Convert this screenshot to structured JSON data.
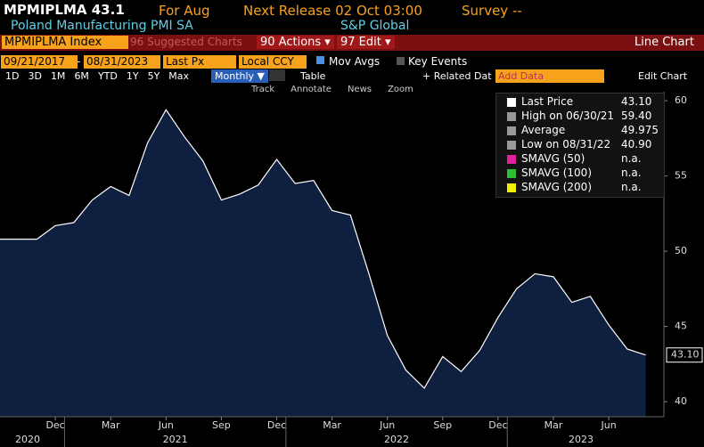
{
  "header": {
    "ticker": "MPMIPLMA",
    "last": "43.1",
    "for": "For Aug",
    "next_release": "Next Release 02 Oct 03:00",
    "survey": "Survey --",
    "name": "Poland Manufacturing PMI SA",
    "source": "S&P Global"
  },
  "toolbar": {
    "security": "MPMIPLMA Index",
    "suggested": "96 Suggested Charts",
    "actions": "90 Actions ▾",
    "edit": "97 Edit ▾",
    "chart_type": "Line Chart",
    "start": "09/21/2017",
    "sep": "-",
    "end": "08/31/2023",
    "field": "Last Px",
    "currency": "Local CCY",
    "mov_avgs": "Mov Avgs",
    "key_events": "Key Events",
    "ranges": [
      "1D",
      "3D",
      "1M",
      "6M",
      "YTD",
      "1Y",
      "5Y",
      "Max"
    ],
    "frequency": "Monthly ▼",
    "table": "Table",
    "related": "+ Related Dat",
    "add_data": "Add Data",
    "edit_chart": "Edit Chart",
    "tools": [
      "Track",
      "Annotate",
      "News",
      "Zoom"
    ]
  },
  "legend": [
    {
      "label": "Last Price",
      "value": "43.10",
      "color": "#ffffff"
    },
    {
      "label": "High on 06/30/21",
      "value": "59.40",
      "color": "#9a9a9a"
    },
    {
      "label": "Average",
      "value": "49.975",
      "color": "#9a9a9a"
    },
    {
      "label": "Low on 08/31/22",
      "value": "40.90",
      "color": "#9a9a9a"
    },
    {
      "label": "SMAVG (50)",
      "value": "n.a.",
      "color": "#e0209c"
    },
    {
      "label": "SMAVG (100)",
      "value": "n.a.",
      "color": "#2ec030"
    },
    {
      "label": "SMAVG (200)",
      "value": "n.a.",
      "color": "#f0f000"
    }
  ],
  "chart_data": {
    "type": "line",
    "x": [
      "2020-09",
      "2020-10",
      "2020-11",
      "2020-12",
      "2021-01",
      "2021-02",
      "2021-03",
      "2021-04",
      "2021-05",
      "2021-06",
      "2021-07",
      "2021-08",
      "2021-09",
      "2021-10",
      "2021-11",
      "2021-12",
      "2022-01",
      "2022-02",
      "2022-03",
      "2022-04",
      "2022-05",
      "2022-06",
      "2022-07",
      "2022-08",
      "2022-09",
      "2022-10",
      "2022-11",
      "2022-12",
      "2023-01",
      "2023-02",
      "2023-03",
      "2023-04",
      "2023-05",
      "2023-06",
      "2023-07",
      "2023-08"
    ],
    "values": [
      50.8,
      50.8,
      50.8,
      51.7,
      51.9,
      53.4,
      54.3,
      53.7,
      57.2,
      59.4,
      57.6,
      56.0,
      53.4,
      53.8,
      54.4,
      56.1,
      54.5,
      54.7,
      52.7,
      52.4,
      48.5,
      44.4,
      42.1,
      40.9,
      43.0,
      42.0,
      43.4,
      45.6,
      47.5,
      48.5,
      48.3,
      46.6,
      47.0,
      45.1,
      43.5,
      43.1
    ],
    "value_labels": [
      null,
      null,
      null,
      null,
      null,
      null,
      null,
      null,
      null,
      null,
      null,
      null,
      null,
      null,
      null,
      null,
      null,
      null,
      null,
      null,
      null,
      null,
      null,
      null,
      null,
      null,
      null,
      null,
      null,
      null,
      null,
      null,
      null,
      null,
      null,
      "43.10"
    ],
    "color": "#ffffff",
    "fill": "#0f1f3f",
    "ylim": [
      39,
      60.6
    ],
    "yticks": [
      40,
      45,
      50,
      55,
      60
    ],
    "xticks": [
      {
        "value": "2020-12",
        "label": "Dec"
      },
      {
        "value": "2021-03",
        "label": "Mar"
      },
      {
        "value": "2021-06",
        "label": "Jun"
      },
      {
        "value": "2021-09",
        "label": "Sep"
      },
      {
        "value": "2021-12",
        "label": "Dec"
      },
      {
        "value": "2022-03",
        "label": "Mar"
      },
      {
        "value": "2022-06",
        "label": "Jun"
      },
      {
        "value": "2022-09",
        "label": "Sep"
      },
      {
        "value": "2022-12",
        "label": "Dec"
      },
      {
        "value": "2023-03",
        "label": "Mar"
      },
      {
        "value": "2023-06",
        "label": "Jun"
      }
    ],
    "year_labels": [
      "2020",
      "2021",
      "2022",
      "2023"
    ]
  }
}
